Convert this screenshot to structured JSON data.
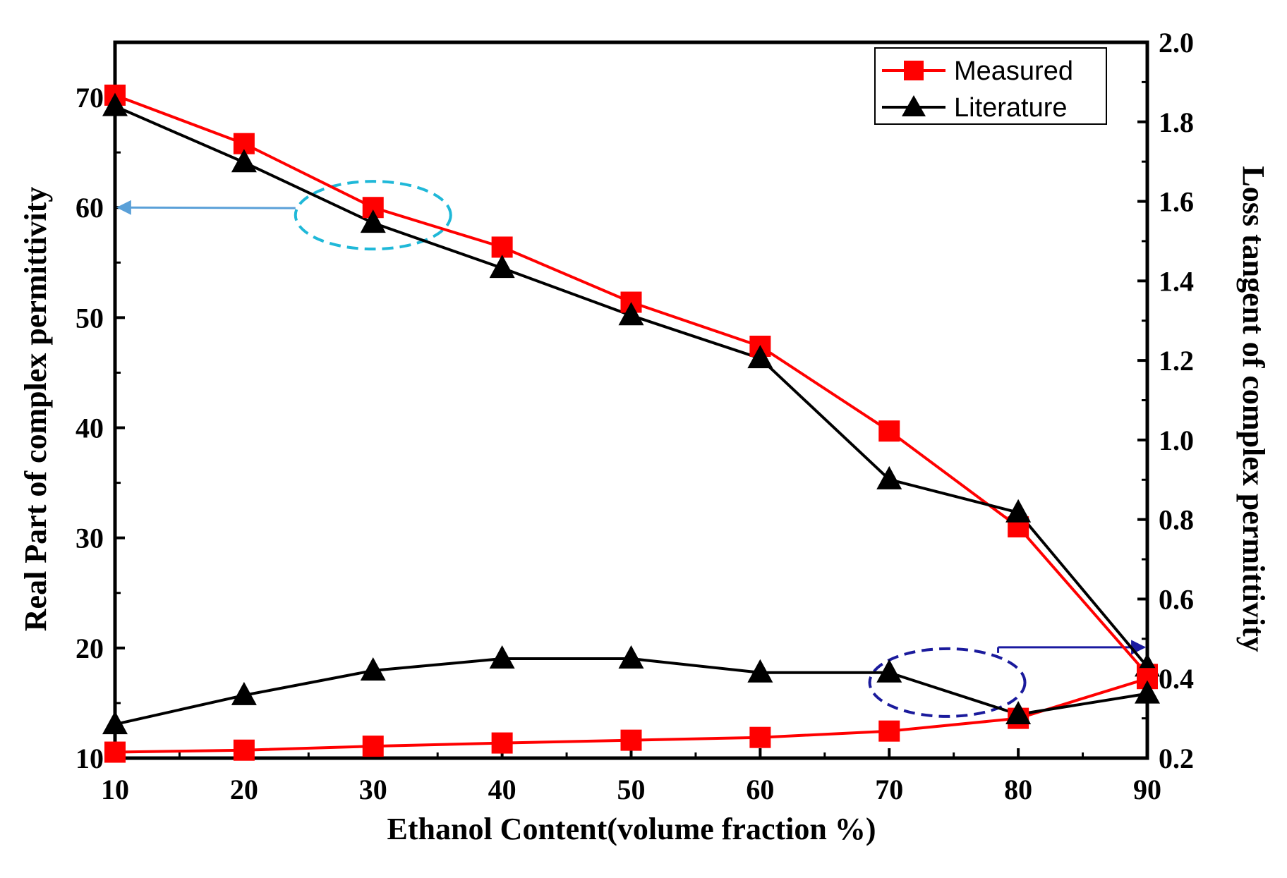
{
  "chart_data": {
    "type": "line",
    "title": "",
    "xlabel": "Ethanol Content(volume fraction %)",
    "ylabel_left": "Real Part of complex permittivity",
    "ylabel_right": "Loss tangent of complex permittivity",
    "xlim": [
      10,
      90
    ],
    "ylim_left": [
      10,
      75
    ],
    "ylim_right": [
      0.2,
      2.0
    ],
    "x_ticks": [
      10,
      20,
      30,
      40,
      50,
      60,
      70,
      80,
      90
    ],
    "y_ticks_left": [
      10,
      20,
      30,
      40,
      50,
      60,
      70
    ],
    "y_ticks_right": [
      0.2,
      0.4,
      0.6,
      0.8,
      1.0,
      1.2,
      1.4,
      1.6,
      1.8,
      2.0
    ],
    "grid": false,
    "legend_position": "top-right",
    "x": [
      10,
      20,
      30,
      40,
      50,
      60,
      70,
      80,
      90
    ],
    "series": [
      {
        "name": "Measured",
        "axis": "left",
        "color": "#ff0000",
        "marker": "square",
        "show_in_legend": true,
        "values": [
          70.2,
          65.8,
          60.0,
          56.4,
          51.4,
          47.4,
          39.7,
          31.0,
          17.6
        ]
      },
      {
        "name": "Literature",
        "axis": "left",
        "color": "#000000",
        "marker": "triangle",
        "show_in_legend": true,
        "values": [
          69.2,
          64.1,
          58.6,
          54.5,
          50.2,
          46.3,
          35.3,
          32.3,
          18.3
        ]
      },
      {
        "name": "Measured",
        "axis": "right",
        "color": "#ff0000",
        "marker": "square",
        "show_in_legend": false,
        "values": [
          0.215,
          0.22,
          0.23,
          0.238,
          0.245,
          0.252,
          0.268,
          0.3,
          0.4
        ]
      },
      {
        "name": "Literature",
        "axis": "right",
        "color": "#000000",
        "marker": "triangle",
        "show_in_legend": false,
        "values": [
          0.285,
          0.358,
          0.42,
          0.45,
          0.45,
          0.415,
          0.415,
          0.31,
          0.362
        ]
      }
    ],
    "annotations": [
      {
        "type": "ellipse",
        "style": "dashed",
        "color": "#1fb8d8",
        "center_x": 30,
        "center_y": 59.3,
        "axis": "left",
        "arrow_to": "left-axis",
        "arrow_color": "#5aa0d8"
      },
      {
        "type": "ellipse",
        "style": "dashed",
        "color": "#1a1a9c",
        "center_x": 74.5,
        "center_y": 0.39,
        "axis": "right",
        "arrow_to": "right-axis",
        "arrow_color": "#1a1aa0"
      }
    ]
  }
}
